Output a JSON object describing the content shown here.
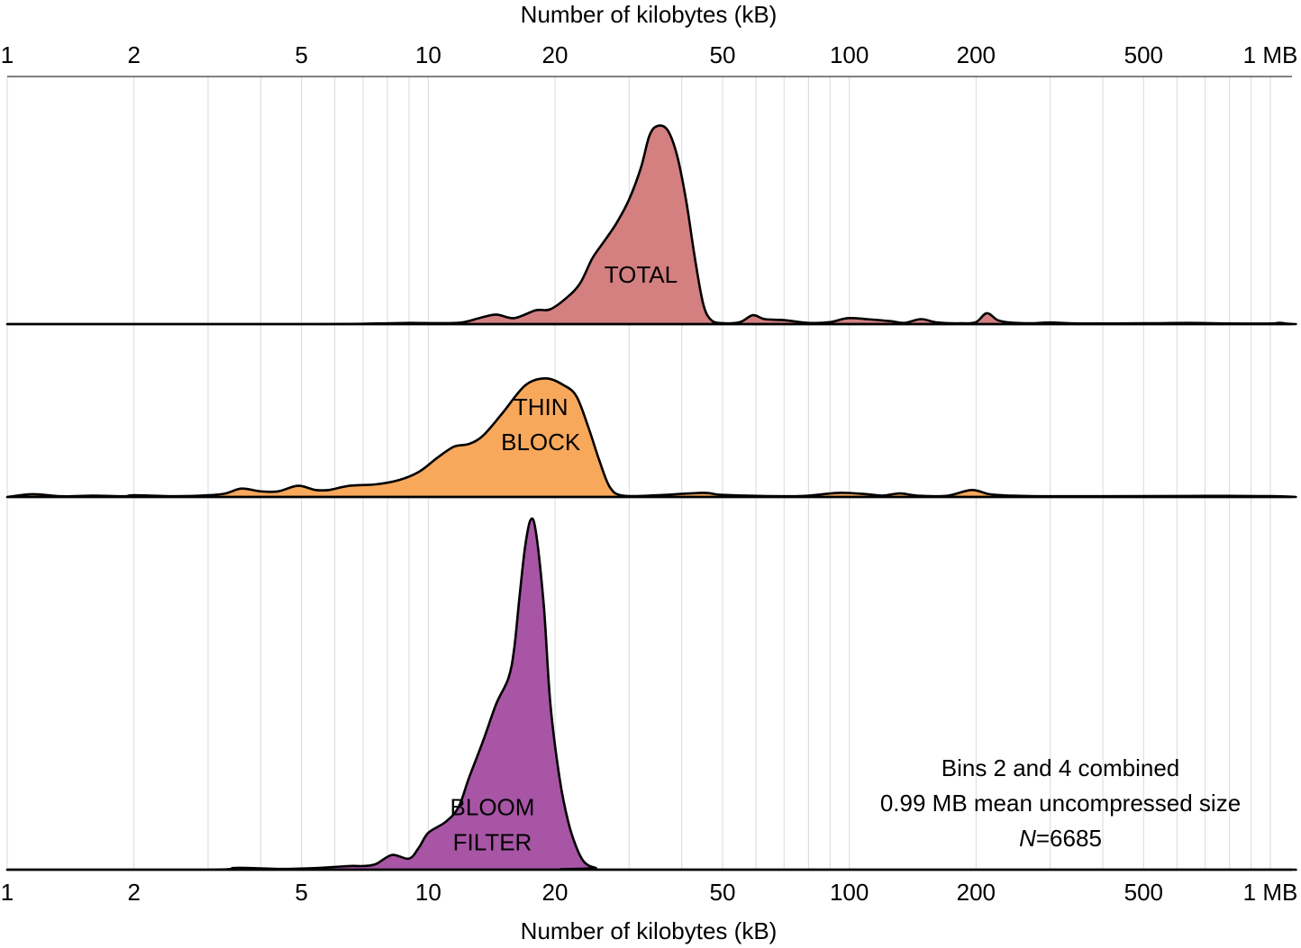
{
  "chart_data": {
    "type": "area",
    "x_scale": "log",
    "xlim": [
      1,
      1150
    ],
    "xlabel_top": "Number of kilobytes (kB)",
    "xlabel_bottom": "Number of kilobytes (kB)",
    "tick_values": [
      1,
      2,
      5,
      10,
      20,
      50,
      100,
      200,
      500,
      1000
    ],
    "tick_labels": [
      "1",
      "2",
      "5",
      "10",
      "20",
      "50",
      "100",
      "200",
      "500",
      "1 MB"
    ],
    "minor_grid_values": [
      3,
      4,
      6,
      7,
      8,
      9,
      30,
      40,
      60,
      70,
      80,
      90,
      300,
      400,
      600,
      700,
      800,
      900
    ],
    "grid": true,
    "series": [
      {
        "name": "TOTAL",
        "label_lines": [
          "TOTAL"
        ],
        "label_at_kb": 32,
        "label_at_density": 0.25,
        "color": "#d47f80",
        "points": [
          [
            1.0,
            0
          ],
          [
            5.0,
            0
          ],
          [
            7.5,
            0.003
          ],
          [
            9.0,
            0.006
          ],
          [
            10.5,
            0.005
          ],
          [
            12.0,
            0.008
          ],
          [
            13.2,
            0.03
          ],
          [
            14.5,
            0.048
          ],
          [
            16.0,
            0.03
          ],
          [
            18.0,
            0.07
          ],
          [
            19.5,
            0.075
          ],
          [
            21.5,
            0.14
          ],
          [
            23.0,
            0.21
          ],
          [
            24.5,
            0.33
          ],
          [
            26.0,
            0.41
          ],
          [
            28.0,
            0.51
          ],
          [
            30.0,
            0.63
          ],
          [
            32.0,
            0.79
          ],
          [
            33.5,
            0.95
          ],
          [
            35.0,
            1.0
          ],
          [
            37.0,
            0.98
          ],
          [
            39.0,
            0.85
          ],
          [
            41.0,
            0.62
          ],
          [
            43.0,
            0.33
          ],
          [
            45.0,
            0.1
          ],
          [
            47.0,
            0.02
          ],
          [
            50.0,
            0.005
          ],
          [
            55.0,
            0.01
          ],
          [
            59.0,
            0.045
          ],
          [
            63.0,
            0.025
          ],
          [
            70.0,
            0.02
          ],
          [
            80.0,
            0.006
          ],
          [
            90.0,
            0.01
          ],
          [
            99.0,
            0.03
          ],
          [
            110.0,
            0.025
          ],
          [
            125.0,
            0.015
          ],
          [
            135.0,
            0.006
          ],
          [
            148.0,
            0.025
          ],
          [
            162.0,
            0.008
          ],
          [
            185.0,
            0.004
          ],
          [
            200.0,
            0.01
          ],
          [
            212.0,
            0.055
          ],
          [
            225.0,
            0.02
          ],
          [
            240.0,
            0.008
          ],
          [
            270.0,
            0.004
          ],
          [
            300.0,
            0.008
          ],
          [
            350.0,
            0.003
          ],
          [
            500.0,
            0.004
          ],
          [
            650.0,
            0.006
          ],
          [
            800.0,
            0.003
          ],
          [
            1000.0,
            0.003
          ],
          [
            1050.0,
            0.007
          ],
          [
            1100.0,
            0.002
          ],
          [
            1150.0,
            0
          ]
        ]
      },
      {
        "name": "THIN BLOCK",
        "label_lines": [
          "THIN",
          "BLOCK"
        ],
        "label_at_kb": 18.5,
        "label_at_density": 0.52,
        "color": "#f7a85b",
        "points": [
          [
            1.0,
            0
          ],
          [
            1.15,
            0.02
          ],
          [
            1.35,
            0.005
          ],
          [
            1.6,
            0.01
          ],
          [
            1.9,
            0.005
          ],
          [
            2.0,
            0.012
          ],
          [
            2.5,
            0.005
          ],
          [
            3.0,
            0.012
          ],
          [
            3.3,
            0.025
          ],
          [
            3.6,
            0.06
          ],
          [
            4.0,
            0.04
          ],
          [
            4.4,
            0.04
          ],
          [
            4.9,
            0.08
          ],
          [
            5.4,
            0.05
          ],
          [
            5.8,
            0.05
          ],
          [
            6.5,
            0.08
          ],
          [
            7.5,
            0.09
          ],
          [
            8.5,
            0.12
          ],
          [
            9.5,
            0.18
          ],
          [
            10.5,
            0.28
          ],
          [
            11.5,
            0.36
          ],
          [
            12.5,
            0.38
          ],
          [
            13.5,
            0.44
          ],
          [
            15.0,
            0.6
          ],
          [
            17.0,
            0.8
          ],
          [
            19.0,
            0.85
          ],
          [
            21.0,
            0.8
          ],
          [
            22.5,
            0.72
          ],
          [
            24.0,
            0.5
          ],
          [
            25.5,
            0.26
          ],
          [
            27.0,
            0.07
          ],
          [
            29.0,
            0.01
          ],
          [
            35.0,
            0.012
          ],
          [
            45.0,
            0.03
          ],
          [
            50.0,
            0.015
          ],
          [
            70.0,
            0.005
          ],
          [
            80.0,
            0.01
          ],
          [
            95.0,
            0.03
          ],
          [
            110.0,
            0.02
          ],
          [
            120.0,
            0.01
          ],
          [
            132.0,
            0.025
          ],
          [
            145.0,
            0.01
          ],
          [
            170.0,
            0.008
          ],
          [
            195.0,
            0.05
          ],
          [
            215.0,
            0.02
          ],
          [
            240.0,
            0.01
          ],
          [
            300.0,
            0.005
          ],
          [
            500.0,
            0.006
          ],
          [
            700.0,
            0.008
          ],
          [
            1000.0,
            0.006
          ],
          [
            1150.0,
            0
          ]
        ]
      },
      {
        "name": "BLOOM FILTER",
        "label_lines": [
          "BLOOM",
          "FILTER"
        ],
        "label_at_kb": 14.2,
        "label_at_density": 0.122,
        "color": "#a855a6",
        "points": [
          [
            1.0,
            0
          ],
          [
            3.0,
            0
          ],
          [
            3.5,
            0.005
          ],
          [
            4.5,
            0.002
          ],
          [
            5.5,
            0.005
          ],
          [
            6.5,
            0.01
          ],
          [
            7.0,
            0.01
          ],
          [
            7.5,
            0.015
          ],
          [
            8.2,
            0.04
          ],
          [
            9.0,
            0.03
          ],
          [
            9.5,
            0.06
          ],
          [
            10.0,
            0.1
          ],
          [
            11.0,
            0.13
          ],
          [
            11.8,
            0.17
          ],
          [
            12.5,
            0.25
          ],
          [
            13.5,
            0.35
          ],
          [
            14.5,
            0.45
          ],
          [
            15.5,
            0.52
          ],
          [
            16.0,
            0.6
          ],
          [
            16.5,
            0.75
          ],
          [
            17.0,
            0.88
          ],
          [
            17.5,
            0.95
          ],
          [
            18.0,
            0.92
          ],
          [
            18.8,
            0.72
          ],
          [
            19.5,
            0.45
          ],
          [
            20.5,
            0.25
          ],
          [
            21.5,
            0.13
          ],
          [
            22.5,
            0.06
          ],
          [
            23.5,
            0.02
          ],
          [
            25.0,
            0.005
          ],
          [
            28.0,
            0
          ],
          [
            1150.0,
            0
          ]
        ]
      }
    ],
    "annotation_lines": [
      "Bins 2 and 4 combined",
      "0.99 MB mean uncompressed size",
      "N=6685"
    ],
    "annotation_n_symbol": "N",
    "annotation_n_value": "=6685"
  }
}
